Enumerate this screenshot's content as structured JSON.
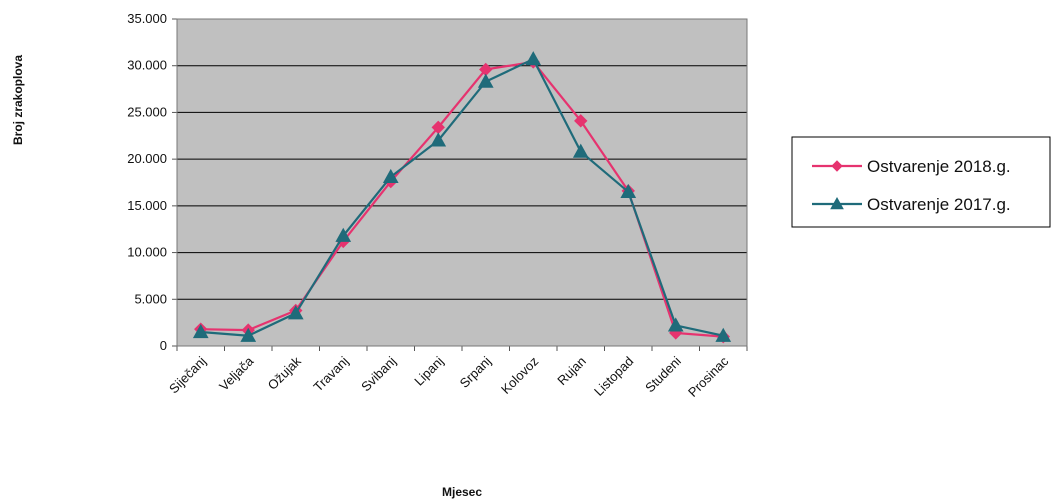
{
  "chart_data": {
    "type": "line",
    "xlabel": "Mjesec",
    "ylabel": "Broj zrakoplova",
    "categories": [
      "Siječanj",
      "Veljača",
      "Ožujak",
      "Travanj",
      "Svibanj",
      "Lipanj",
      "Srpanj",
      "Kolovoz",
      "Rujan",
      "Listopad",
      "Studeni",
      "Prosinac"
    ],
    "ylim": [
      0,
      35000
    ],
    "yticks": [
      "0",
      "5.000",
      "10.000",
      "15.000",
      "20.000",
      "25.000",
      "30.000",
      "35.000"
    ],
    "grid": true,
    "legend_position": "right",
    "series": [
      {
        "name": "Ostvarenje 2018.g.",
        "color": "#e6336f",
        "marker": "diamond",
        "values": [
          1800,
          1700,
          3800,
          11200,
          17600,
          23400,
          29600,
          30400,
          24100,
          16600,
          1400,
          1000
        ]
      },
      {
        "name": "Ostvarenje 2017.g.",
        "color": "#1f6b7a",
        "marker": "triangle",
        "values": [
          1500,
          1100,
          3500,
          11800,
          18100,
          22000,
          28300,
          30700,
          20800,
          16500,
          2200,
          1100
        ]
      }
    ]
  },
  "colors": {
    "plot_background": "#c0c0c0",
    "gridline": "#000000"
  }
}
